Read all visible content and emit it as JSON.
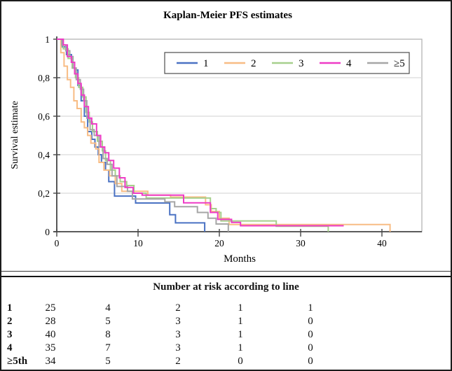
{
  "chart_data": {
    "type": "line",
    "subtype": "kaplan-meier-step",
    "title": "Kaplan-Meier PFS estimates",
    "xlabel": "Months",
    "ylabel": "Survival estimate",
    "xlim": [
      0,
      45
    ],
    "ylim": [
      0,
      1
    ],
    "grid": "horizontal-light",
    "legend_position": "top-right-inside",
    "x_ticks": [
      {
        "v": 0,
        "label": "0"
      },
      {
        "v": 10,
        "label": "10"
      },
      {
        "v": 20,
        "label": "20"
      },
      {
        "v": 30,
        "label": "30"
      },
      {
        "v": 40,
        "label": "40"
      }
    ],
    "y_ticks": [
      {
        "v": 1,
        "label": "1"
      },
      {
        "v": 0.8,
        "label": "0,8"
      },
      {
        "v": 0.6,
        "label": "0,6"
      },
      {
        "v": 0.4,
        "label": "0,4"
      },
      {
        "v": 0.2,
        "label": "0,2"
      },
      {
        "v": 0,
        "label": "0"
      }
    ],
    "series": [
      {
        "name": "1",
        "color": "#4a72c3",
        "steps": [
          [
            0.7,
            0.96
          ],
          [
            1.2,
            0.92
          ],
          [
            1.8,
            0.88
          ],
          [
            2.2,
            0.84
          ],
          [
            2.6,
            0.76
          ],
          [
            3.0,
            0.68
          ],
          [
            3.4,
            0.6
          ],
          [
            3.8,
            0.52
          ],
          [
            4.3,
            0.48
          ],
          [
            4.7,
            0.44
          ],
          [
            5.1,
            0.4
          ],
          [
            5.5,
            0.36
          ],
          [
            6.0,
            0.32
          ],
          [
            6.4,
            0.26
          ],
          [
            7.1,
            0.185
          ],
          [
            9.7,
            0.149
          ],
          [
            13.9,
            0.088
          ],
          [
            14.6,
            0.046
          ],
          [
            18.2,
            0
          ]
        ]
      },
      {
        "name": "2",
        "color": "#f8bc84",
        "steps": [
          [
            0.5,
            0.93
          ],
          [
            0.9,
            0.86
          ],
          [
            1.3,
            0.79
          ],
          [
            1.7,
            0.75
          ],
          [
            2.1,
            0.68
          ],
          [
            2.5,
            0.64
          ],
          [
            3.0,
            0.57
          ],
          [
            3.4,
            0.54
          ],
          [
            3.8,
            0.5
          ],
          [
            4.2,
            0.46
          ],
          [
            4.8,
            0.43
          ],
          [
            5.2,
            0.36
          ],
          [
            5.8,
            0.32
          ],
          [
            6.5,
            0.29
          ],
          [
            7.2,
            0.25
          ],
          [
            8.0,
            0.21
          ],
          [
            11.2,
            0.19
          ],
          [
            14.0,
            0.18
          ],
          [
            18.3,
            0.14
          ],
          [
            19.0,
            0.105
          ],
          [
            20.0,
            0.07
          ],
          [
            21.2,
            0.037
          ],
          [
            41.0,
            0
          ]
        ]
      },
      {
        "name": "3",
        "color": "#a6d08c",
        "steps": [
          [
            0.8,
            0.95
          ],
          [
            1.4,
            0.9
          ],
          [
            1.9,
            0.85
          ],
          [
            2.3,
            0.8
          ],
          [
            2.7,
            0.75
          ],
          [
            3.2,
            0.7
          ],
          [
            3.6,
            0.62
          ],
          [
            4.0,
            0.57
          ],
          [
            4.4,
            0.52
          ],
          [
            5.0,
            0.47
          ],
          [
            5.6,
            0.42
          ],
          [
            6.0,
            0.37
          ],
          [
            6.6,
            0.32
          ],
          [
            7.2,
            0.29
          ],
          [
            7.8,
            0.26
          ],
          [
            8.6,
            0.24
          ],
          [
            9.5,
            0.2
          ],
          [
            11.0,
            0.175
          ],
          [
            18.9,
            0.12
          ],
          [
            19.6,
            0.1
          ],
          [
            20.2,
            0.056
          ],
          [
            27.0,
            0.028
          ],
          [
            33.4,
            0
          ]
        ]
      },
      {
        "name": "4",
        "color": "#ee3bc6",
        "steps": [
          [
            0.8,
            0.97
          ],
          [
            1.3,
            0.91
          ],
          [
            1.8,
            0.88
          ],
          [
            2.2,
            0.82
          ],
          [
            2.6,
            0.77
          ],
          [
            3.0,
            0.71
          ],
          [
            3.4,
            0.65
          ],
          [
            3.9,
            0.59
          ],
          [
            4.3,
            0.56
          ],
          [
            4.9,
            0.5
          ],
          [
            5.4,
            0.44
          ],
          [
            5.9,
            0.41
          ],
          [
            6.4,
            0.37
          ],
          [
            7.0,
            0.33
          ],
          [
            7.7,
            0.28
          ],
          [
            8.4,
            0.23
          ],
          [
            9.4,
            0.2
          ],
          [
            10.5,
            0.19
          ],
          [
            15.6,
            0.15
          ],
          [
            18.9,
            0.1
          ],
          [
            19.8,
            0.064
          ],
          [
            21.5,
            0.048
          ],
          [
            22.6,
            0.031
          ],
          [
            35.3,
            0.031
          ]
        ]
      },
      {
        "name": "≥5",
        "color": "#a6a6a6",
        "steps": [
          [
            0.6,
            0.97
          ],
          [
            1.1,
            0.94
          ],
          [
            1.6,
            0.91
          ],
          [
            2.0,
            0.85
          ],
          [
            2.4,
            0.79
          ],
          [
            2.9,
            0.74
          ],
          [
            3.3,
            0.68
          ],
          [
            3.7,
            0.59
          ],
          [
            4.1,
            0.53
          ],
          [
            4.6,
            0.5
          ],
          [
            5.2,
            0.44
          ],
          [
            5.7,
            0.38
          ],
          [
            6.2,
            0.35
          ],
          [
            6.8,
            0.29
          ],
          [
            7.4,
            0.235
          ],
          [
            8.7,
            0.21
          ],
          [
            9.3,
            0.17
          ],
          [
            13.3,
            0.155
          ],
          [
            14.5,
            0.13
          ],
          [
            17.3,
            0.1
          ],
          [
            18.6,
            0.07
          ],
          [
            19.6,
            0.04
          ],
          [
            21.1,
            0
          ]
        ]
      }
    ],
    "colors": {
      "grid": "#d9d9d9",
      "plot_border": "#b3b3b3",
      "axis": "#474747"
    }
  },
  "risk_table": {
    "title": "Number at risk according to line",
    "rows": [
      {
        "label": "1",
        "values": [
          "25",
          "4",
          "2",
          "1",
          "1"
        ]
      },
      {
        "label": "2",
        "values": [
          "28",
          "5",
          "3",
          "1",
          "0"
        ]
      },
      {
        "label": "3",
        "values": [
          "40",
          "8",
          "3",
          "1",
          "0"
        ]
      },
      {
        "label": "4",
        "values": [
          "35",
          "7",
          "3",
          "1",
          "0"
        ]
      },
      {
        "label": "≥5th",
        "values": [
          "34",
          "5",
          "2",
          "0",
          "0"
        ]
      }
    ]
  }
}
